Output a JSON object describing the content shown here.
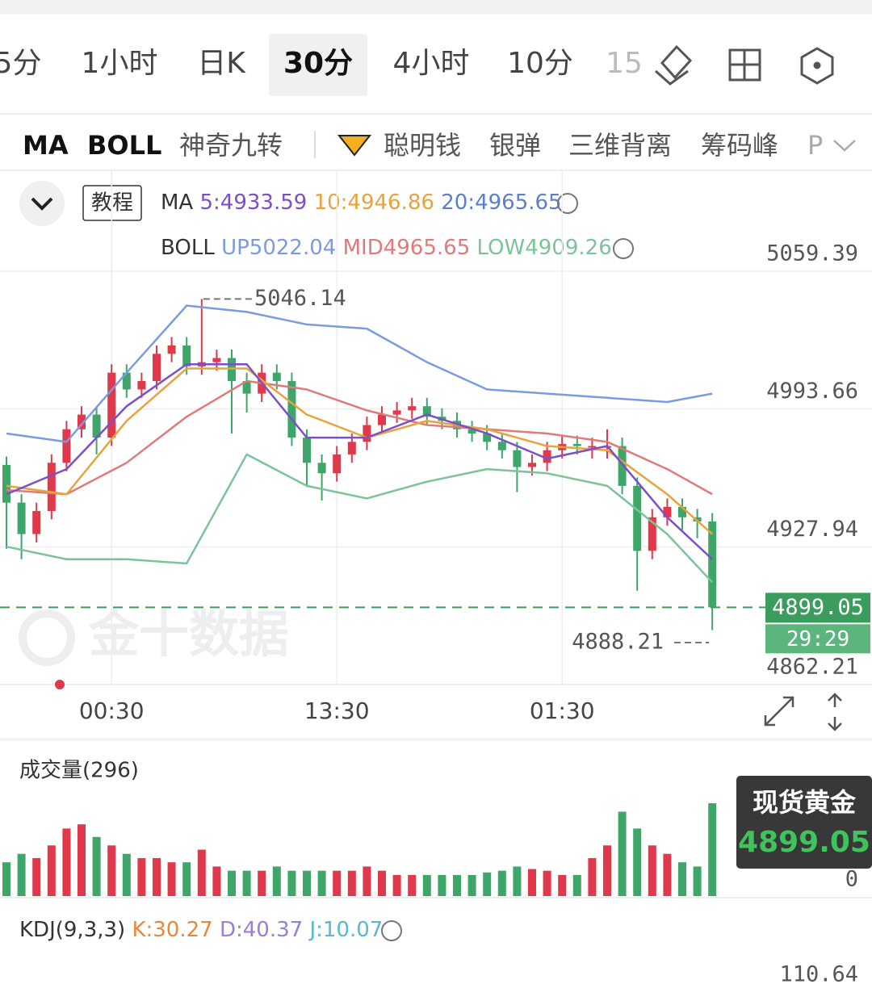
{
  "tabs": [
    "5分",
    "1小时",
    "日K",
    "30分",
    "4小时",
    "10分",
    "15"
  ],
  "indicators": [
    "MA",
    "BOLL",
    "神奇九转",
    "聪明钱",
    "银弹",
    "三维背离",
    "筹码峰",
    "P"
  ],
  "tutorial": "教程",
  "ma_legend": {
    "label": "MA",
    "ma5": "5:4933.59",
    "ma10": "10:4946.86",
    "ma20": "20:4965.65"
  },
  "boll_legend": {
    "label": "BOLL",
    "up": "UP5022.04",
    "mid": "MID4965.65",
    "low": "LOW4909.26"
  },
  "watermark": "金十数据",
  "chart_data": {
    "type": "candlestick",
    "ylim": [
      4862.21,
      5059.39
    ],
    "yticks": [
      5059.39,
      4993.66,
      4927.94,
      4862.21
    ],
    "xticks": [
      {
        "value": 7,
        "label": "00:30"
      },
      {
        "value": 22,
        "label": "13:30"
      },
      {
        "value": 37,
        "label": "01:30"
      }
    ],
    "up_color": "#e0394b",
    "down_color": "#3fa66a",
    "last_price": 4899.05,
    "countdown": "29:29",
    "candles": [
      [
        4967,
        4971,
        4927,
        4949
      ],
      [
        4949,
        4953,
        4922,
        4934
      ],
      [
        4934,
        4949,
        4930,
        4945
      ],
      [
        4945,
        4972,
        4941,
        4968
      ],
      [
        4968,
        4988,
        4964,
        4984
      ],
      [
        4984,
        4995,
        4980,
        4991
      ],
      [
        4991,
        4995,
        4972,
        4980
      ],
      [
        4980,
        5015,
        4976,
        5011
      ],
      [
        5011,
        5015,
        4999,
        5003
      ],
      [
        5003,
        5011,
        4999,
        5007
      ],
      [
        5007,
        5024,
        5003,
        5020
      ],
      [
        5020,
        5028,
        5016,
        5024
      ],
      [
        5024,
        5028,
        5010,
        5014
      ],
      [
        5014,
        5046.14,
        5010,
        5016
      ],
      [
        5016,
        5022,
        5012,
        5018
      ],
      [
        5018,
        5022,
        4982,
        5007
      ],
      [
        5007,
        5011,
        4992,
        5001
      ],
      [
        5001,
        5015,
        4997,
        5011
      ],
      [
        5011,
        5015,
        5003,
        5007
      ],
      [
        5007,
        5011,
        4976,
        4980
      ],
      [
        4980,
        4984,
        4957,
        4968
      ],
      [
        4968,
        4972,
        4950,
        4963
      ],
      [
        4963,
        4976,
        4959,
        4972
      ],
      [
        4972,
        4982,
        4968,
        4978
      ],
      [
        4978,
        4990,
        4974,
        4986
      ],
      [
        4986,
        4995,
        4982,
        4991
      ],
      [
        4991,
        4997,
        4987,
        4993
      ],
      [
        4993,
        4999,
        4989,
        4995
      ],
      [
        4995,
        4999,
        4986,
        4990
      ],
      [
        4990,
        4994,
        4984,
        4988
      ],
      [
        4988,
        4992,
        4980,
        4984
      ],
      [
        4984,
        4988,
        4978,
        4982
      ],
      [
        4982,
        4986,
        4974,
        4978
      ],
      [
        4978,
        4982,
        4970,
        4974
      ],
      [
        4974,
        4978,
        4954,
        4966
      ],
      [
        4966,
        4972,
        4962,
        4968
      ],
      [
        4968,
        4978,
        4964,
        4974
      ],
      [
        4974,
        4981,
        4970,
        4977
      ],
      [
        4977,
        4981,
        4972,
        4976
      ],
      [
        4976,
        4980,
        4970,
        4976
      ],
      [
        4976,
        4984,
        4970,
        4976
      ],
      [
        4976,
        4980,
        4953,
        4957
      ],
      [
        4957,
        4961,
        4907,
        4926
      ],
      [
        4926,
        4946,
        4922,
        4942
      ],
      [
        4942,
        4951,
        4938,
        4947
      ],
      [
        4947,
        4951,
        4936,
        4942
      ],
      [
        4942,
        4946,
        4932,
        4940
      ],
      [
        4940,
        4944,
        4888.21,
        4899.05
      ]
    ],
    "line_x": [
      0,
      4,
      8,
      12,
      16,
      20,
      24,
      28,
      32,
      36,
      40,
      44,
      47
    ],
    "lines": [
      {
        "color": "#7b9be0",
        "values": [
          4982,
          4978,
          5011,
          5043,
          5040,
          5034,
          5032,
          5016,
          5003,
          5001,
          4999,
          4997,
          5001
        ]
      },
      {
        "color": "#7bc49a",
        "values": [
          4928,
          4922,
          4922,
          4920,
          4972,
          4957,
          4951,
          4959,
          4965,
          4963,
          4957,
          4934,
          4911
        ]
      },
      {
        "color": "#e07a7a",
        "values": [
          4955,
          4953,
          4968,
          4990,
          5007,
          5003,
          4993,
          4986,
          4984,
          4982,
          4978,
          4965,
          4953
        ]
      },
      {
        "color": "#e8a33d",
        "values": [
          4957,
          4953,
          4988,
          5013,
          5013,
          4991,
          4980,
          4988,
          4984,
          4976,
          4974,
          4953,
          4934
        ]
      },
      {
        "color": "#7b4fc9",
        "values": [
          4953,
          4965,
          4995,
          5015,
          5015,
          4980,
          4980,
          4991,
          4982,
          4970,
          4976,
          4942,
          4922
        ]
      }
    ]
  },
  "volume": {
    "title": "成交量(296)",
    "ylim": [
      0,
      11000
    ],
    "yticks": [
      0
    ],
    "values": [
      4000,
      5000,
      4500,
      6000,
      8000,
      8500,
      7000,
      6000,
      5000,
      4500,
      4500,
      4000,
      4000,
      5500,
      3500,
      3000,
      3000,
      3000,
      3500,
      3000,
      3000,
      3000,
      3000,
      3000,
      3500,
      3000,
      2500,
      2500,
      2500,
      2500,
      2500,
      2500,
      2800,
      3000,
      3500,
      3200,
      3000,
      2500,
      2500,
      4500,
      6000,
      10000,
      8000,
      6000,
      5000,
      4000,
      3500,
      11000
    ]
  },
  "popup": {
    "name": "现货黄金"
  },
  "kdj": {
    "label": "KDJ(9,3,3)",
    "k": "K:30.27",
    "d": "D:40.37",
    "j": "J:10.07",
    "top": 110.64
  }
}
